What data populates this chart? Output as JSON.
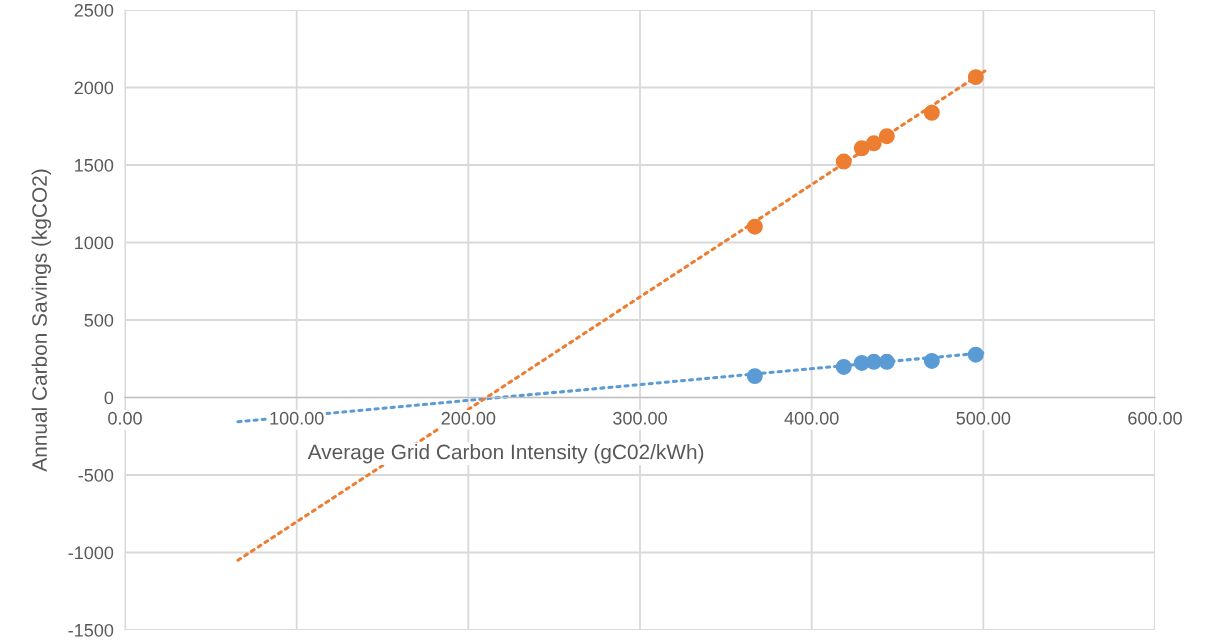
{
  "chart_data": {
    "type": "scatter",
    "xlabel": "Average Grid Carbon Intensity (gC02/kWh)",
    "ylabel": "Annual Carbon Savings (kgCO2)",
    "series": [
      {
        "color": "#5b9bd5",
        "marker": "circle",
        "x": [
          366.9,
          418.7,
          429.2,
          436.2,
          443.8,
          470.0,
          495.6
        ],
        "values": [
          138,
          197,
          223,
          230,
          230,
          236,
          276
        ]
      },
      {
        "color": "#ed7d31",
        "marker": "circle",
        "x": [
          366.9,
          418.7,
          429.2,
          436.2,
          443.8,
          470.0,
          495.6
        ],
        "values": [
          1102,
          1522,
          1608,
          1640,
          1686,
          1837,
          2067
        ]
      },
      {
        "type": "line",
        "color": "#5b9bd5",
        "line_style": "dotted",
        "marker": "none",
        "x": [
          65.8,
          500.9
        ],
        "values": [
          -156,
          289
        ]
      },
      {
        "type": "line",
        "color": "#ed7d31",
        "line_style": "dotted",
        "marker": "none",
        "x": [
          65.8,
          500.9
        ],
        "values": [
          -1050,
          2106
        ]
      }
    ],
    "xlim": [
      0,
      600
    ],
    "ylim": [
      -1500,
      2500
    ],
    "xticks": [
      {
        "value": 0,
        "label": "0.00"
      },
      {
        "value": 100,
        "label": "100.00"
      },
      {
        "value": 200,
        "label": "200.00"
      },
      {
        "value": 300,
        "label": "300.00"
      },
      {
        "value": 400,
        "label": "400.00"
      },
      {
        "value": 500,
        "label": "500.00"
      },
      {
        "value": 600,
        "label": "600.00"
      }
    ],
    "yticks": [
      -1500,
      -1000,
      -500,
      0,
      500,
      1000,
      1500,
      2000,
      2500
    ],
    "grid": true,
    "legend": false
  }
}
